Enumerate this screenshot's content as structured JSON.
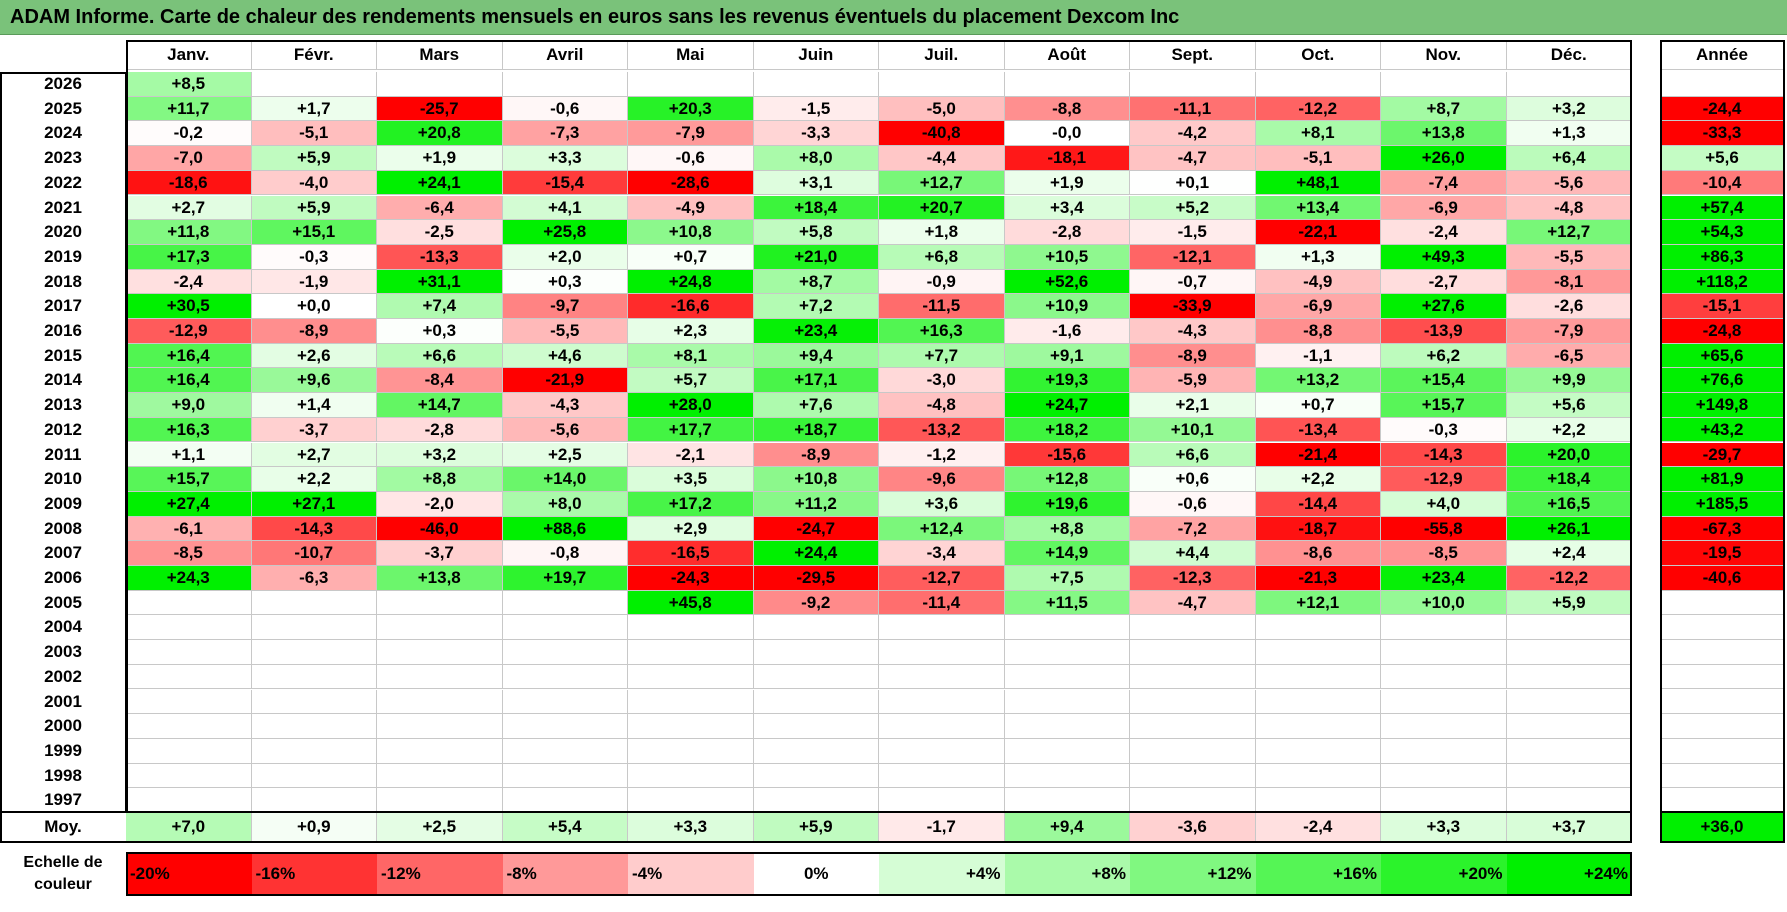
{
  "title": "ADAM Informe. Carte de chaleur des rendements mensuels en euros sans les revenus éventuels du placement Dexcom Inc",
  "chart_data": {
    "type": "heatmap",
    "months": [
      "Janv.",
      "Févr.",
      "Mars",
      "Avril",
      "Mai",
      "Juin",
      "Juil.",
      "Août",
      "Sept.",
      "Oct.",
      "Nov.",
      "Déc."
    ],
    "year_header": "Année",
    "rows": [
      {
        "year": "2026",
        "values": [
          "+8,5",
          null,
          null,
          null,
          null,
          null,
          null,
          null,
          null,
          null,
          null,
          null
        ],
        "annual": null
      },
      {
        "year": "2025",
        "values": [
          "+11,7",
          "+1,7",
          "-25,7",
          "-0,6",
          "+20,3",
          "-1,5",
          "-5,0",
          "-8,8",
          "-11,1",
          "-12,2",
          "+8,7",
          "+3,2"
        ],
        "annual": "-24,4"
      },
      {
        "year": "2024",
        "values": [
          "-0,2",
          "-5,1",
          "+20,8",
          "-7,3",
          "-7,9",
          "-3,3",
          "-40,8",
          "-0,0",
          "-4,2",
          "+8,1",
          "+13,8",
          "+1,3"
        ],
        "annual": "-33,3"
      },
      {
        "year": "2023",
        "values": [
          "-7,0",
          "+5,9",
          "+1,9",
          "+3,3",
          "-0,6",
          "+8,0",
          "-4,4",
          "-18,1",
          "-4,7",
          "-5,1",
          "+26,0",
          "+6,4"
        ],
        "annual": "+5,6"
      },
      {
        "year": "2022",
        "values": [
          "-18,6",
          "-4,0",
          "+24,1",
          "-15,4",
          "-28,6",
          "+3,1",
          "+12,7",
          "+1,9",
          "+0,1",
          "+48,1",
          "-7,4",
          "-5,6"
        ],
        "annual": "-10,4"
      },
      {
        "year": "2021",
        "values": [
          "+2,7",
          "+5,9",
          "-6,4",
          "+4,1",
          "-4,9",
          "+18,4",
          "+20,7",
          "+3,4",
          "+5,2",
          "+13,4",
          "-6,9",
          "-4,8"
        ],
        "annual": "+57,4"
      },
      {
        "year": "2020",
        "values": [
          "+11,8",
          "+15,1",
          "-2,5",
          "+25,8",
          "+10,8",
          "+5,8",
          "+1,8",
          "-2,8",
          "-1,5",
          "-22,1",
          "-2,4",
          "+12,7"
        ],
        "annual": "+54,3"
      },
      {
        "year": "2019",
        "values": [
          "+17,3",
          "-0,3",
          "-13,3",
          "+2,0",
          "+0,7",
          "+21,0",
          "+6,8",
          "+10,5",
          "-12,1",
          "+1,3",
          "+49,3",
          "-5,5"
        ],
        "annual": "+86,3"
      },
      {
        "year": "2018",
        "values": [
          "-2,4",
          "-1,9",
          "+31,1",
          "+0,3",
          "+24,8",
          "+8,7",
          "-0,9",
          "+52,6",
          "-0,7",
          "-4,9",
          "-2,7",
          "-8,1"
        ],
        "annual": "+118,2"
      },
      {
        "year": "2017",
        "values": [
          "+30,5",
          "+0,0",
          "+7,4",
          "-9,7",
          "-16,6",
          "+7,2",
          "-11,5",
          "+10,9",
          "-33,9",
          "-6,9",
          "+27,6",
          "-2,6"
        ],
        "annual": "-15,1"
      },
      {
        "year": "2016",
        "values": [
          "-12,9",
          "-8,9",
          "+0,3",
          "-5,5",
          "+2,3",
          "+23,4",
          "+16,3",
          "-1,6",
          "-4,3",
          "-8,8",
          "-13,9",
          "-7,9"
        ],
        "annual": "-24,8"
      },
      {
        "year": "2015",
        "values": [
          "+16,4",
          "+2,6",
          "+6,6",
          "+4,6",
          "+8,1",
          "+9,4",
          "+7,7",
          "+9,1",
          "-8,9",
          "-1,1",
          "+6,2",
          "-6,5"
        ],
        "annual": "+65,6"
      },
      {
        "year": "2014",
        "values": [
          "+16,4",
          "+9,6",
          "-8,4",
          "-21,9",
          "+5,7",
          "+17,1",
          "-3,0",
          "+19,3",
          "-5,9",
          "+13,2",
          "+15,4",
          "+9,9"
        ],
        "annual": "+76,6"
      },
      {
        "year": "2013",
        "values": [
          "+9,0",
          "+1,4",
          "+14,7",
          "-4,3",
          "+28,0",
          "+7,6",
          "-4,8",
          "+24,7",
          "+2,1",
          "+0,7",
          "+15,7",
          "+5,6"
        ],
        "annual": "+149,8"
      },
      {
        "year": "2012",
        "values": [
          "+16,3",
          "-3,7",
          "-2,8",
          "-5,6",
          "+17,7",
          "+18,7",
          "-13,2",
          "+18,2",
          "+10,1",
          "-13,4",
          "-0,3",
          "+2,2"
        ],
        "annual": "+43,2"
      },
      {
        "year": "2011",
        "values": [
          "+1,1",
          "+2,7",
          "+3,2",
          "+2,5",
          "-2,1",
          "-8,9",
          "-1,2",
          "-15,6",
          "+6,6",
          "-21,4",
          "-14,3",
          "+20,0"
        ],
        "annual": "-29,7"
      },
      {
        "year": "2010",
        "values": [
          "+15,7",
          "+2,2",
          "+8,8",
          "+14,0",
          "+3,5",
          "+10,8",
          "-9,6",
          "+12,8",
          "+0,6",
          "+2,2",
          "-12,9",
          "+18,4"
        ],
        "annual": "+81,9"
      },
      {
        "year": "2009",
        "values": [
          "+27,4",
          "+27,1",
          "-2,0",
          "+8,0",
          "+17,2",
          "+11,2",
          "+3,6",
          "+19,6",
          "-0,6",
          "-14,4",
          "+4,0",
          "+16,5"
        ],
        "annual": "+185,5"
      },
      {
        "year": "2008",
        "values": [
          "-6,1",
          "-14,3",
          "-46,0",
          "+88,6",
          "+2,9",
          "-24,7",
          "+12,4",
          "+8,8",
          "-7,2",
          "-18,7",
          "-55,8",
          "+26,1"
        ],
        "annual": "-67,3"
      },
      {
        "year": "2007",
        "values": [
          "-8,5",
          "-10,7",
          "-3,7",
          "-0,8",
          "-16,5",
          "+24,4",
          "-3,4",
          "+14,9",
          "+4,4",
          "-8,6",
          "-8,5",
          "+2,4"
        ],
        "annual": "-19,5"
      },
      {
        "year": "2006",
        "values": [
          "+24,3",
          "-6,3",
          "+13,8",
          "+19,7",
          "-24,3",
          "-29,5",
          "-12,7",
          "+7,5",
          "-12,3",
          "-21,3",
          "+23,4",
          "-12,2"
        ],
        "annual": "-40,6"
      },
      {
        "year": "2005",
        "values": [
          null,
          null,
          null,
          null,
          "+45,8",
          "-9,2",
          "-11,4",
          "+11,5",
          "-4,7",
          "+12,1",
          "+10,0",
          "+5,9"
        ],
        "annual": null
      },
      {
        "year": "2004",
        "values": [
          null,
          null,
          null,
          null,
          null,
          null,
          null,
          null,
          null,
          null,
          null,
          null
        ],
        "annual": null
      },
      {
        "year": "2003",
        "values": [
          null,
          null,
          null,
          null,
          null,
          null,
          null,
          null,
          null,
          null,
          null,
          null
        ],
        "annual": null
      },
      {
        "year": "2002",
        "values": [
          null,
          null,
          null,
          null,
          null,
          null,
          null,
          null,
          null,
          null,
          null,
          null
        ],
        "annual": null
      },
      {
        "year": "2001",
        "values": [
          null,
          null,
          null,
          null,
          null,
          null,
          null,
          null,
          null,
          null,
          null,
          null
        ],
        "annual": null
      },
      {
        "year": "2000",
        "values": [
          null,
          null,
          null,
          null,
          null,
          null,
          null,
          null,
          null,
          null,
          null,
          null
        ],
        "annual": null
      },
      {
        "year": "1999",
        "values": [
          null,
          null,
          null,
          null,
          null,
          null,
          null,
          null,
          null,
          null,
          null,
          null
        ],
        "annual": null
      },
      {
        "year": "1998",
        "values": [
          null,
          null,
          null,
          null,
          null,
          null,
          null,
          null,
          null,
          null,
          null,
          null
        ],
        "annual": null
      },
      {
        "year": "1997",
        "values": [
          null,
          null,
          null,
          null,
          null,
          null,
          null,
          null,
          null,
          null,
          null,
          null
        ],
        "annual": null
      }
    ],
    "average": {
      "label": "Moy.",
      "values": [
        "+7,0",
        "+0,9",
        "+2,5",
        "+5,4",
        "+3,3",
        "+5,9",
        "-1,7",
        "+9,4",
        "-3,6",
        "-2,4",
        "+3,3",
        "+3,7"
      ],
      "annual": "+36,0"
    },
    "color_scale": {
      "label": "Echelle de couleur",
      "stops": [
        "-20%",
        "-16%",
        "-12%",
        "-8%",
        "-4%",
        "0%",
        "+4%",
        "+8%",
        "+12%",
        "+16%",
        "+20%",
        "+24%"
      ]
    }
  },
  "colors": {
    "title_bg": "#7ac27a",
    "red_max": "#ff0000",
    "green_max": "#00f000",
    "neutral": "#ffffff"
  }
}
